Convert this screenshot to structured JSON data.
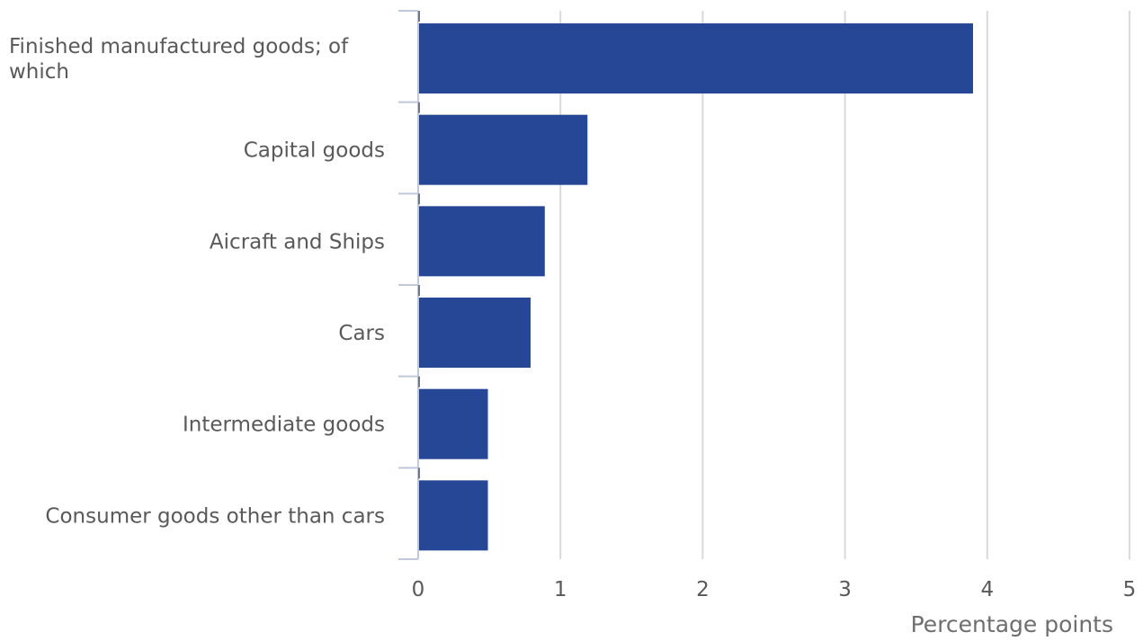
{
  "chart_data": {
    "type": "bar",
    "orientation": "horizontal",
    "categories": [
      "Finished manufactured goods; of which",
      "Capital goods",
      "Aicraft and Ships",
      "Cars",
      "Intermediate goods",
      "Consumer goods other than cars"
    ],
    "values": [
      3.9,
      1.19,
      0.89,
      0.79,
      0.49,
      0.49
    ],
    "xlabel": "Percentage points",
    "ylabel": "",
    "title": "",
    "xlim": [
      0,
      5
    ],
    "xticks": [
      "0",
      "1",
      "2",
      "3",
      "4",
      "5"
    ],
    "grid": "vertical",
    "legend": "none",
    "colors": {
      "bar": "#264796",
      "grid": "#d9d9d9",
      "axis": "#bfc9dc",
      "text": "#595959"
    }
  }
}
